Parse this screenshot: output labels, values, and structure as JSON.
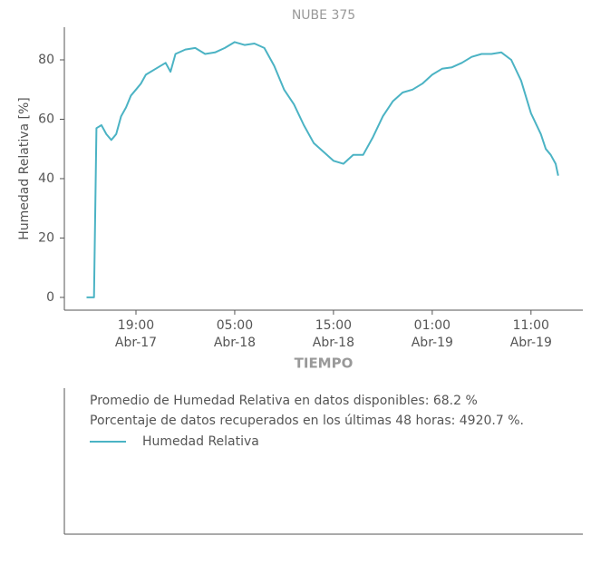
{
  "chart_data": {
    "type": "line",
    "title": "NUBE 375",
    "x_label": "TIEMPO",
    "y_label": "Humedad Relativa [%]",
    "x": [
      "Abr-17 14:00",
      "Abr-17 14:45",
      "Abr-17 15:00",
      "Abr-17 15:30",
      "Abr-17 16:00",
      "Abr-17 16:30",
      "Abr-17 17:00",
      "Abr-17 17:30",
      "Abr-17 18:00",
      "Abr-17 18:30",
      "Abr-17 19:00",
      "Abr-17 19:30",
      "Abr-17 20:00",
      "Abr-17 21:00",
      "Abr-17 22:00",
      "Abr-17 22:30",
      "Abr-17 23:00",
      "Abr-18 00:00",
      "Abr-18 01:00",
      "Abr-18 02:00",
      "Abr-18 03:00",
      "Abr-18 04:00",
      "Abr-18 05:00",
      "Abr-18 06:00",
      "Abr-18 07:00",
      "Abr-18 08:00",
      "Abr-18 09:00",
      "Abr-18 10:00",
      "Abr-18 11:00",
      "Abr-18 12:00",
      "Abr-18 13:00",
      "Abr-18 14:00",
      "Abr-18 15:00",
      "Abr-18 16:00",
      "Abr-18 17:00",
      "Abr-18 18:00",
      "Abr-18 19:00",
      "Abr-18 20:00",
      "Abr-18 21:00",
      "Abr-18 22:00",
      "Abr-18 23:00",
      "Abr-19 00:00",
      "Abr-19 01:00",
      "Abr-19 02:00",
      "Abr-19 03:00",
      "Abr-19 04:00",
      "Abr-19 05:00",
      "Abr-19 06:00",
      "Abr-19 07:00",
      "Abr-19 08:00",
      "Abr-19 09:00",
      "Abr-19 10:00",
      "Abr-19 11:00",
      "Abr-19 12:00",
      "Abr-19 12:30",
      "Abr-19 13:00",
      "Abr-19 13:30",
      "Abr-19 13:45"
    ],
    "series": [
      {
        "name": "Humedad Relativa",
        "color": "#4bb3c4",
        "values": [
          0,
          0,
          57,
          58,
          55,
          53,
          55,
          61,
          64,
          68,
          70,
          72,
          75,
          77,
          79,
          76,
          82,
          83.5,
          84,
          82,
          82.5,
          84,
          86,
          85,
          85.5,
          84,
          78,
          70,
          65,
          58,
          52,
          49,
          46,
          45,
          48,
          48,
          54,
          61,
          66,
          69,
          70,
          72,
          75,
          77,
          77.5,
          79,
          81,
          82,
          82,
          82.5,
          80,
          73,
          62,
          55,
          50,
          48,
          45,
          41
        ]
      }
    ],
    "xlim": [
      "Abr-17 11:45",
      "Abr-19 16:15"
    ],
    "xticks": [
      {
        "time": "19:00",
        "date": "Abr-17"
      },
      {
        "time": "05:00",
        "date": "Abr-18"
      },
      {
        "time": "15:00",
        "date": "Abr-18"
      },
      {
        "time": "01:00",
        "date": "Abr-19"
      },
      {
        "time": "11:00",
        "date": "Abr-19"
      }
    ],
    "ylim": [
      -4.3,
      91
    ],
    "yticks": [
      0,
      20,
      40,
      60,
      80
    ],
    "annotations": [
      "Promedio de Humedad Relativa en datos disponibles: 68.2 %",
      "Porcentaje de datos recuperados en los últimas 48 horas: 4920.7 %."
    ]
  }
}
